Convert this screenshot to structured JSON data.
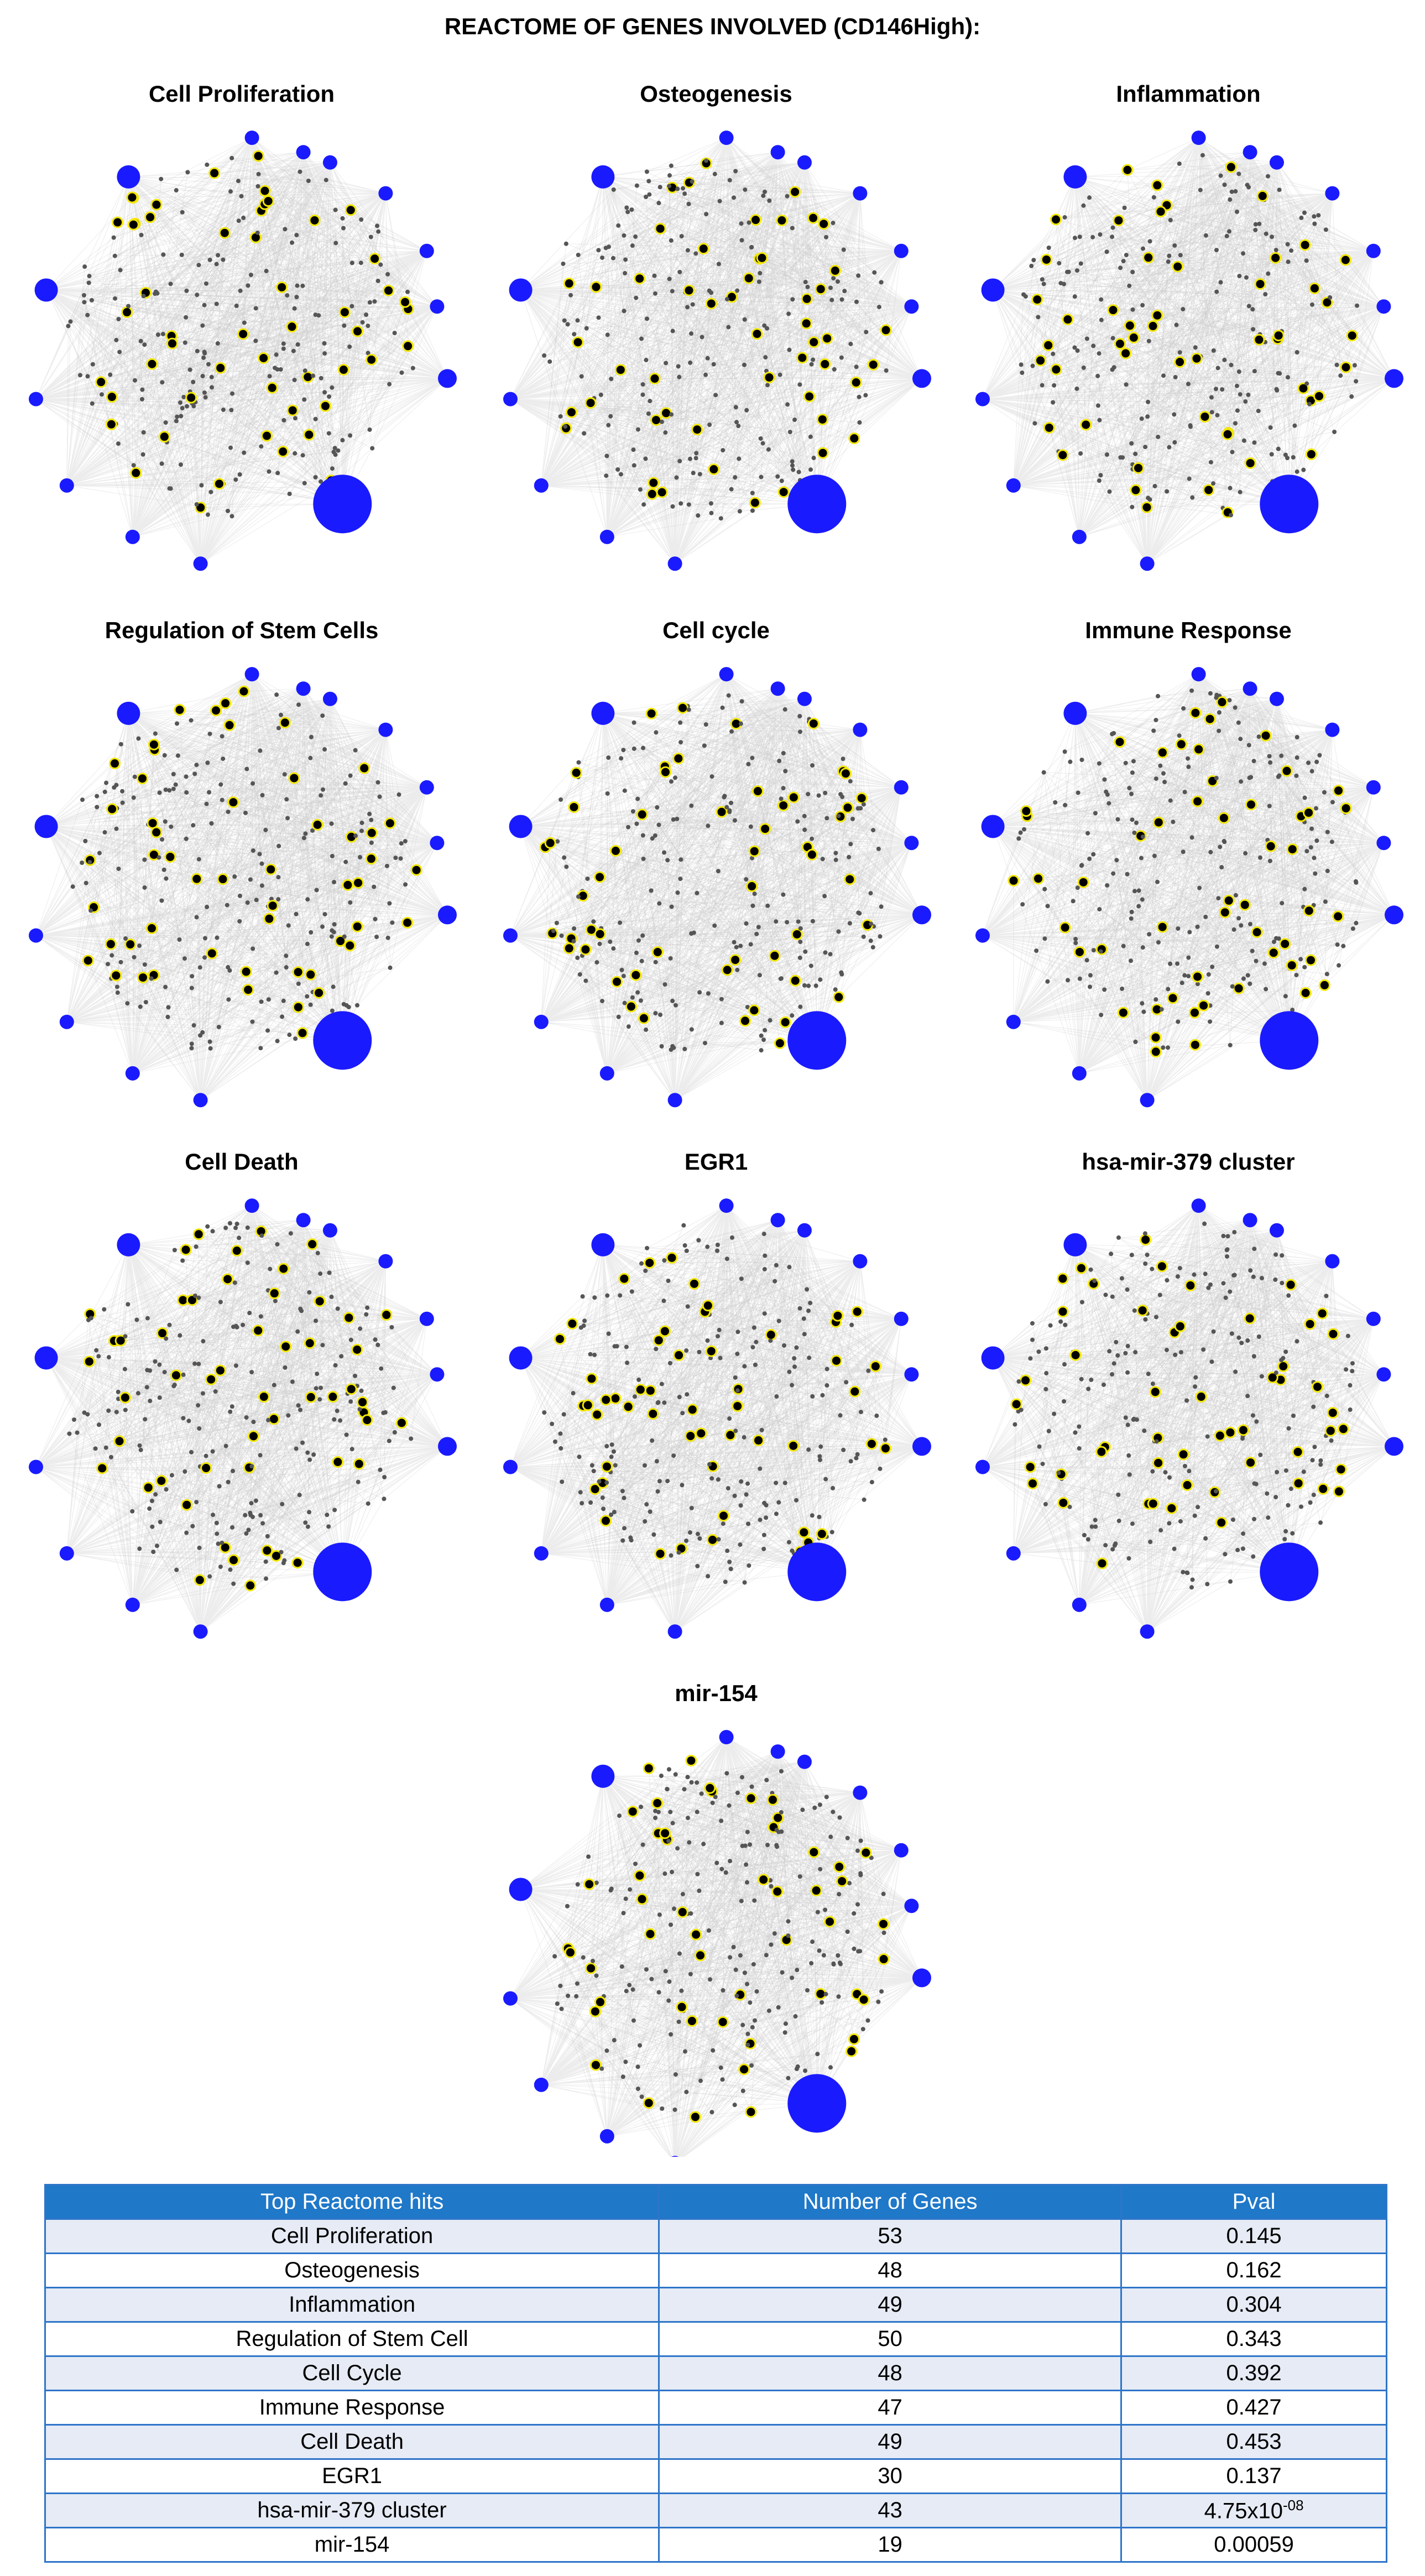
{
  "title": "REACTOME OF GENES INVOLVED  (CD146High):",
  "panels": [
    {
      "title": "Cell Proliferation"
    },
    {
      "title": "Osteogenesis"
    },
    {
      "title": "Inflammation"
    },
    {
      "title": "Regulation of Stem Cells"
    },
    {
      "title": "Cell cycle"
    },
    {
      "title": "Immune Response"
    },
    {
      "title": "Cell Death"
    },
    {
      "title": "EGR1"
    },
    {
      "title": "hsa-mir-379 cluster"
    },
    {
      "title": "mir-154"
    }
  ],
  "table": {
    "header": [
      "Top Reactome hits",
      "Number of Genes",
      "Pval"
    ],
    "rows": [
      [
        "Cell Proliferation",
        53,
        0.145
      ],
      [
        "Osteogenesis",
        48,
        0.162
      ],
      [
        "Inflammation",
        49,
        0.304
      ],
      [
        "Regulation of Stem Cell",
        50,
        0.343
      ],
      [
        "Cell Cycle",
        48,
        0.392
      ],
      [
        "Immune Response",
        47,
        0.427
      ],
      [
        "Cell Death",
        49,
        0.453
      ],
      [
        "EGR1",
        30,
        0.137
      ],
      [
        "hsa-mir-379 cluster",
        43,
        {
          "mantissa": "4.75x10",
          "exponent": "-08"
        }
      ],
      [
        "mir-154",
        19,
        0.00059
      ]
    ]
  }
}
